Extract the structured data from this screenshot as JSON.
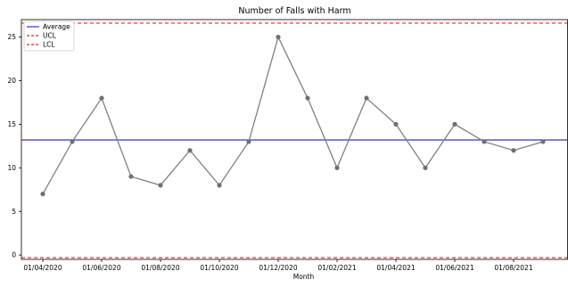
{
  "chart_data": {
    "type": "line",
    "title": "Number of Falls with Harm",
    "xlabel": "Month",
    "ylabel": "",
    "x": [
      "01/04/2020",
      "01/05/2020",
      "01/06/2020",
      "01/07/2020",
      "01/08/2020",
      "01/09/2020",
      "01/10/2020",
      "01/11/2020",
      "01/12/2020",
      "01/01/2021",
      "01/02/2021",
      "01/03/2021",
      "01/04/2021",
      "01/05/2021",
      "01/06/2021",
      "01/07/2021",
      "01/08/2021",
      "01/09/2021"
    ],
    "x_tick_labels": [
      "01/04/2020",
      "01/06/2020",
      "01/08/2020",
      "01/10/2020",
      "01/12/2020",
      "01/02/2021",
      "01/04/2021",
      "01/06/2021",
      "01/08/2021"
    ],
    "y_ticks": [
      0,
      5,
      10,
      15,
      20,
      25
    ],
    "ylim": [
      -0.5,
      27
    ],
    "series": [
      {
        "values": [
          7,
          13,
          18,
          9,
          8,
          12,
          8,
          13,
          25,
          18,
          10,
          18,
          15,
          10,
          15,
          13,
          12,
          13
        ],
        "color": "#808080",
        "marker": "circle"
      }
    ],
    "reference_lines": [
      {
        "name": "Average",
        "value": 13.2,
        "color": "#3333cc",
        "style": "solid"
      },
      {
        "name": "UCL",
        "value": 26.6,
        "color": "#ee2222",
        "style": "dashed"
      },
      {
        "name": "LCL",
        "value": -0.3,
        "color": "#ee2222",
        "style": "dashed"
      }
    ],
    "legend": {
      "placement": "top-left",
      "entries": [
        "Average",
        "UCL",
        "LCL"
      ]
    },
    "grid": false
  }
}
